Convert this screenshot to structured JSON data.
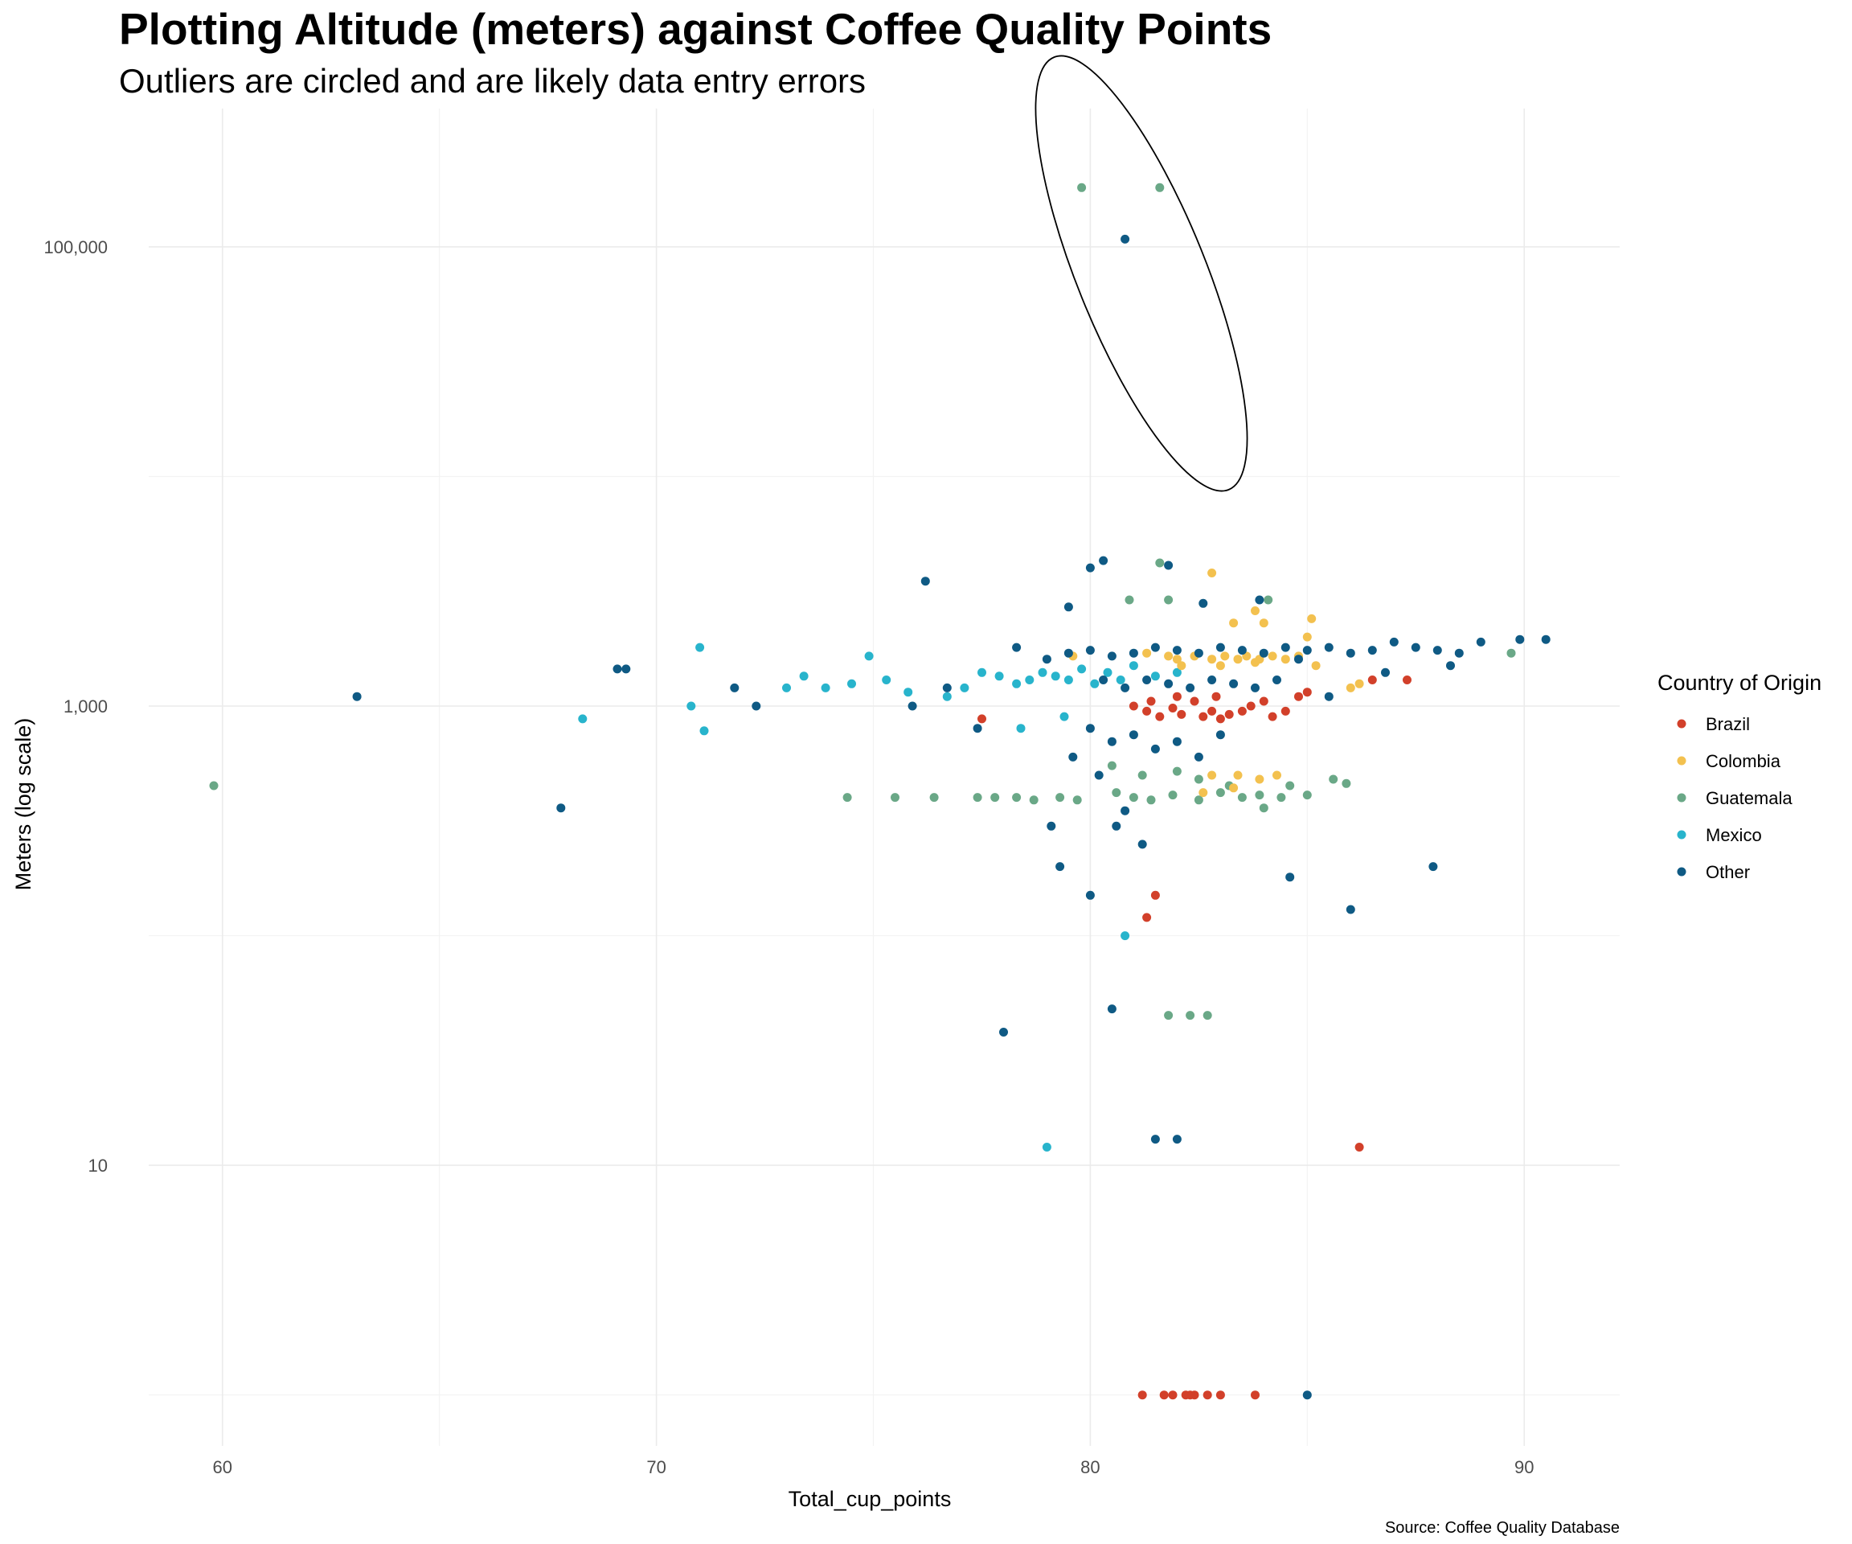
{
  "chart_data": {
    "type": "scatter",
    "title": "Plotting Altitude (meters) against Coffee Quality Points",
    "subtitle": "Outliers are circled and are likely data entry errors",
    "xlabel": "Total_cup_points",
    "ylabel": "Meters (log scale)",
    "caption": "Source: Coffee Quality Database",
    "x_ticks": [
      60,
      70,
      80,
      90
    ],
    "x_tick_labels": [
      "60",
      "70",
      "80",
      "90"
    ],
    "y_ticks": [
      10,
      1000,
      100000
    ],
    "y_tick_labels": [
      "10",
      "1,000",
      "100,000"
    ],
    "xlim": [
      58.3,
      92.2
    ],
    "ylim": [
      0.6,
      400000
    ],
    "y_scale": "log10",
    "grid": true,
    "legend": {
      "title": "Country of Origin",
      "position": "right",
      "entries": [
        "Brazil",
        "Colombia",
        "Guatemala",
        "Mexico",
        "Other"
      ]
    },
    "annotation": "ellipse around outliers",
    "colors": {
      "Brazil": "#d2402a",
      "Colombia": "#f3c14f",
      "Guatemala": "#6aa887",
      "Mexico": "#28b4cc",
      "Other": "#0f5a84"
    },
    "series": [
      {
        "name": "Brazil",
        "points": [
          [
            82.9,
            1100
          ],
          [
            86.2,
            12
          ],
          [
            81.2,
            1
          ],
          [
            81.7,
            1
          ],
          [
            81.9,
            1
          ],
          [
            82.2,
            1
          ],
          [
            82.3,
            1
          ],
          [
            82.4,
            1
          ],
          [
            82.7,
            1
          ],
          [
            83.0,
            1
          ],
          [
            83.8,
            1
          ],
          [
            81.3,
            120
          ],
          [
            81.5,
            150
          ],
          [
            77.5,
            880
          ],
          [
            81.0,
            1000
          ],
          [
            81.3,
            950
          ],
          [
            81.6,
            900
          ],
          [
            81.9,
            980
          ],
          [
            82.1,
            920
          ],
          [
            82.4,
            1050
          ],
          [
            82.6,
            900
          ],
          [
            82.8,
            950
          ],
          [
            83.0,
            880
          ],
          [
            83.2,
            920
          ],
          [
            83.5,
            950
          ],
          [
            83.7,
            1000
          ],
          [
            84.0,
            1050
          ],
          [
            84.2,
            900
          ],
          [
            84.5,
            950
          ],
          [
            84.8,
            1100
          ],
          [
            85.0,
            1150
          ],
          [
            86.5,
            1300
          ],
          [
            87.3,
            1300
          ],
          [
            81.4,
            1050
          ],
          [
            82.0,
            1100
          ]
        ]
      },
      {
        "name": "Colombia",
        "points": [
          [
            82.8,
            3800
          ],
          [
            83.8,
            2600
          ],
          [
            83.3,
            2300
          ],
          [
            84.0,
            2300
          ],
          [
            85.1,
            2400
          ],
          [
            85.0,
            2000
          ],
          [
            79.6,
            1650
          ],
          [
            81.3,
            1700
          ],
          [
            81.8,
            1650
          ],
          [
            82.0,
            1600
          ],
          [
            82.4,
            1650
          ],
          [
            82.8,
            1600
          ],
          [
            83.1,
            1650
          ],
          [
            83.4,
            1600
          ],
          [
            83.6,
            1650
          ],
          [
            83.9,
            1600
          ],
          [
            84.2,
            1650
          ],
          [
            84.5,
            1600
          ],
          [
            84.8,
            1650
          ],
          [
            85.2,
            1500
          ],
          [
            86.0,
            1200
          ],
          [
            86.2,
            1250
          ],
          [
            82.1,
            1500
          ],
          [
            83.0,
            1500
          ],
          [
            83.8,
            1550
          ],
          [
            82.6,
            420
          ],
          [
            83.3,
            440
          ],
          [
            82.8,
            500
          ],
          [
            83.4,
            500
          ],
          [
            83.9,
            480
          ],
          [
            84.3,
            500
          ]
        ]
      },
      {
        "name": "Guatemala",
        "points": [
          [
            79.8,
            181000
          ],
          [
            81.6,
            181000
          ],
          [
            59.8,
            450
          ],
          [
            74.4,
            400
          ],
          [
            75.5,
            400
          ],
          [
            76.4,
            400
          ],
          [
            77.4,
            400
          ],
          [
            77.8,
            400
          ],
          [
            78.3,
            400
          ],
          [
            78.7,
            390
          ],
          [
            79.3,
            400
          ],
          [
            79.7,
            390
          ],
          [
            80.6,
            420
          ],
          [
            81.0,
            400
          ],
          [
            81.4,
            390
          ],
          [
            81.9,
            410
          ],
          [
            82.5,
            390
          ],
          [
            83.0,
            420
          ],
          [
            83.5,
            400
          ],
          [
            83.9,
            410
          ],
          [
            84.4,
            400
          ],
          [
            85.0,
            410
          ],
          [
            85.6,
            480
          ],
          [
            85.9,
            460
          ],
          [
            80.5,
            550
          ],
          [
            81.2,
            500
          ],
          [
            82.0,
            520
          ],
          [
            82.5,
            480
          ],
          [
            83.2,
            450
          ],
          [
            84.0,
            360
          ],
          [
            84.6,
            450
          ],
          [
            81.8,
            45
          ],
          [
            82.3,
            45
          ],
          [
            82.7,
            45
          ],
          [
            80.9,
            2900
          ],
          [
            81.6,
            4200
          ],
          [
            81.8,
            2900
          ],
          [
            84.1,
            2900
          ],
          [
            89.7,
            1700
          ]
        ]
      },
      {
        "name": "Mexico",
        "points": [
          [
            68.3,
            880
          ],
          [
            70.8,
            1000
          ],
          [
            71.1,
            780
          ],
          [
            71.0,
            1800
          ],
          [
            73.0,
            1200
          ],
          [
            73.4,
            1350
          ],
          [
            73.9,
            1200
          ],
          [
            74.5,
            1250
          ],
          [
            74.9,
            1650
          ],
          [
            75.3,
            1300
          ],
          [
            75.8,
            1150
          ],
          [
            76.7,
            1100
          ],
          [
            77.1,
            1200
          ],
          [
            77.5,
            1400
          ],
          [
            77.9,
            1350
          ],
          [
            78.3,
            1250
          ],
          [
            78.6,
            1300
          ],
          [
            78.9,
            1400
          ],
          [
            79.2,
            1350
          ],
          [
            79.5,
            1300
          ],
          [
            79.8,
            1450
          ],
          [
            80.1,
            1250
          ],
          [
            80.4,
            1400
          ],
          [
            80.7,
            1300
          ],
          [
            81.0,
            1500
          ],
          [
            81.5,
            1350
          ],
          [
            82.0,
            1400
          ],
          [
            80.8,
            100
          ],
          [
            79.0,
            12
          ],
          [
            78.4,
            800
          ],
          [
            79.4,
            900
          ]
        ]
      },
      {
        "name": "Other",
        "points": [
          [
            80.8,
            108000
          ],
          [
            63.1,
            1100
          ],
          [
            67.8,
            360
          ],
          [
            69.1,
            1450
          ],
          [
            69.3,
            1450
          ],
          [
            71.8,
            1200
          ],
          [
            72.3,
            1000
          ],
          [
            75.9,
            1000
          ],
          [
            76.2,
            3500
          ],
          [
            76.7,
            1200
          ],
          [
            77.4,
            800
          ],
          [
            78.0,
            38
          ],
          [
            79.1,
            300
          ],
          [
            79.3,
            200
          ],
          [
            79.5,
            2700
          ],
          [
            80.0,
            4000
          ],
          [
            80.3,
            4300
          ],
          [
            80.6,
            300
          ],
          [
            80.0,
            150
          ],
          [
            80.5,
            48
          ],
          [
            81.5,
            13
          ],
          [
            82.0,
            13
          ],
          [
            85.0,
            1
          ],
          [
            86.0,
            130
          ],
          [
            87.9,
            200
          ],
          [
            84.6,
            180
          ],
          [
            81.8,
            4100
          ],
          [
            82.6,
            2800
          ],
          [
            83.9,
            2900
          ],
          [
            78.3,
            1800
          ],
          [
            79.0,
            1600
          ],
          [
            79.5,
            1700
          ],
          [
            80.0,
            1750
          ],
          [
            80.5,
            1650
          ],
          [
            81.0,
            1700
          ],
          [
            81.5,
            1800
          ],
          [
            82.0,
            1750
          ],
          [
            82.5,
            1700
          ],
          [
            83.0,
            1800
          ],
          [
            83.5,
            1750
          ],
          [
            84.0,
            1700
          ],
          [
            84.5,
            1800
          ],
          [
            85.0,
            1750
          ],
          [
            85.5,
            1800
          ],
          [
            86.0,
            1700
          ],
          [
            86.5,
            1750
          ],
          [
            87.0,
            1900
          ],
          [
            87.5,
            1800
          ],
          [
            88.0,
            1750
          ],
          [
            88.5,
            1700
          ],
          [
            89.0,
            1900
          ],
          [
            89.9,
            1950
          ],
          [
            90.5,
            1950
          ],
          [
            80.3,
            1300
          ],
          [
            80.8,
            1200
          ],
          [
            81.3,
            1300
          ],
          [
            81.8,
            1250
          ],
          [
            82.3,
            1200
          ],
          [
            82.8,
            1300
          ],
          [
            83.3,
            1250
          ],
          [
            83.8,
            1200
          ],
          [
            84.3,
            1300
          ],
          [
            80.0,
            800
          ],
          [
            80.5,
            700
          ],
          [
            81.0,
            750
          ],
          [
            81.5,
            650
          ],
          [
            82.0,
            700
          ],
          [
            82.5,
            600
          ],
          [
            83.0,
            750
          ],
          [
            80.2,
            500
          ],
          [
            80.8,
            350
          ],
          [
            81.2,
            250
          ],
          [
            79.6,
            600
          ],
          [
            85.5,
            1100
          ],
          [
            88.3,
            1500
          ],
          [
            84.8,
            1600
          ],
          [
            86.8,
            1400
          ]
        ]
      }
    ]
  }
}
